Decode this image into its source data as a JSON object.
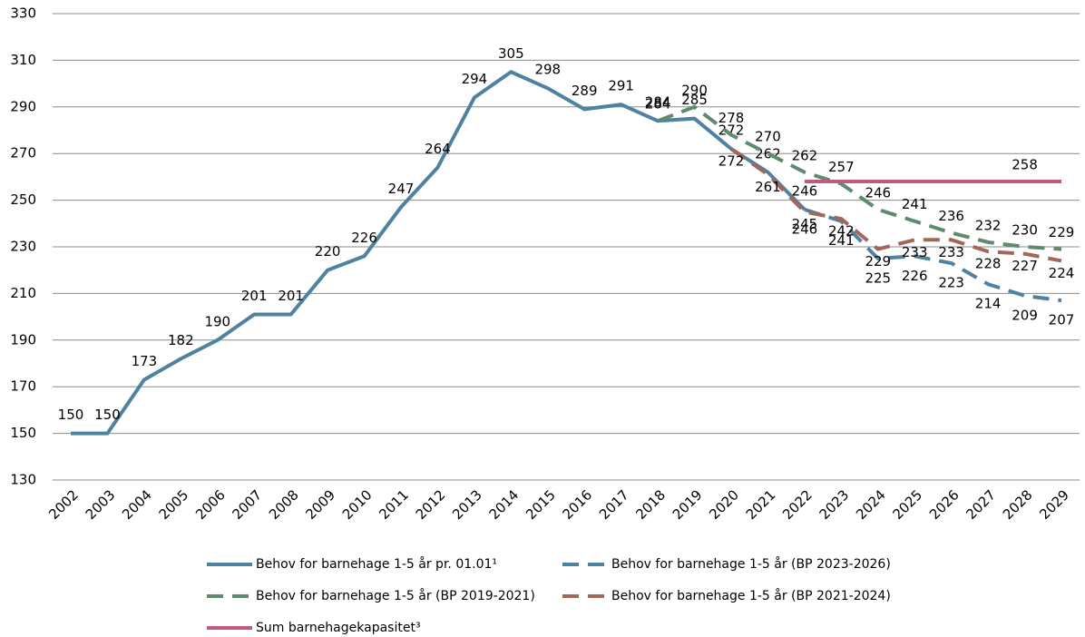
{
  "chart_data": {
    "type": "line",
    "categories": [
      "2002",
      "2003",
      "2004",
      "2005",
      "2006",
      "2007",
      "2008",
      "2009",
      "2010",
      "2011",
      "2012",
      "2013",
      "2014",
      "2015",
      "2016",
      "2017",
      "2018",
      "2019",
      "2020",
      "2021",
      "2022",
      "2023",
      "2024",
      "2025",
      "2026",
      "2027",
      "2028",
      "2029"
    ],
    "ylim": [
      130,
      330
    ],
    "yticks": [
      130,
      150,
      170,
      190,
      210,
      230,
      250,
      270,
      290,
      310,
      330
    ],
    "grid": true,
    "series": [
      {
        "name": "Behov for barnehage 1-5 år pr. 01.01¹",
        "color": "#4f81a0",
        "dash": false,
        "values": [
          150,
          150,
          173,
          182,
          190,
          201,
          201,
          220,
          226,
          247,
          264,
          294,
          305,
          298,
          289,
          291,
          284,
          285,
          272,
          262,
          246,
          null,
          null,
          null,
          null,
          null,
          null,
          null
        ]
      },
      {
        "name": "Behov for barnehage 1-5 år (BP 2023-2026)",
        "color": "#4f81a0",
        "dash": true,
        "values": [
          null,
          null,
          null,
          null,
          null,
          null,
          null,
          null,
          null,
          null,
          null,
          null,
          null,
          null,
          null,
          null,
          null,
          null,
          null,
          null,
          246,
          241,
          225,
          226,
          223,
          214,
          209,
          207
        ]
      },
      {
        "name": "Behov for barnehage 1-5 år (BP 2019-2021)",
        "color": "#5e8a70",
        "dash": true,
        "values": [
          null,
          null,
          null,
          null,
          null,
          null,
          null,
          null,
          null,
          null,
          null,
          null,
          null,
          null,
          null,
          null,
          284,
          290,
          278,
          270,
          262,
          257,
          246,
          241,
          236,
          232,
          230,
          229
        ]
      },
      {
        "name": "Behov for barnehage 1-5 år (BP 2021-2024)",
        "color": "#a0675a",
        "dash": true,
        "values": [
          null,
          null,
          null,
          null,
          null,
          null,
          null,
          null,
          null,
          null,
          null,
          null,
          null,
          null,
          null,
          null,
          null,
          null,
          272,
          261,
          245,
          242,
          229,
          233,
          233,
          228,
          227,
          224
        ]
      },
      {
        "name": "Sum barnehagekapasitet³",
        "color": "#c05a7f",
        "dash": false,
        "values": [
          null,
          null,
          null,
          null,
          null,
          null,
          null,
          null,
          null,
          null,
          null,
          null,
          null,
          null,
          null,
          null,
          null,
          null,
          null,
          null,
          258,
          258,
          258,
          258,
          258,
          258,
          258,
          258
        ],
        "value_labels": [
          null,
          null,
          null,
          null,
          null,
          null,
          null,
          null,
          null,
          null,
          null,
          null,
          null,
          null,
          null,
          null,
          null,
          null,
          null,
          null,
          null,
          null,
          null,
          null,
          null,
          null,
          "258",
          null
        ]
      }
    ]
  }
}
